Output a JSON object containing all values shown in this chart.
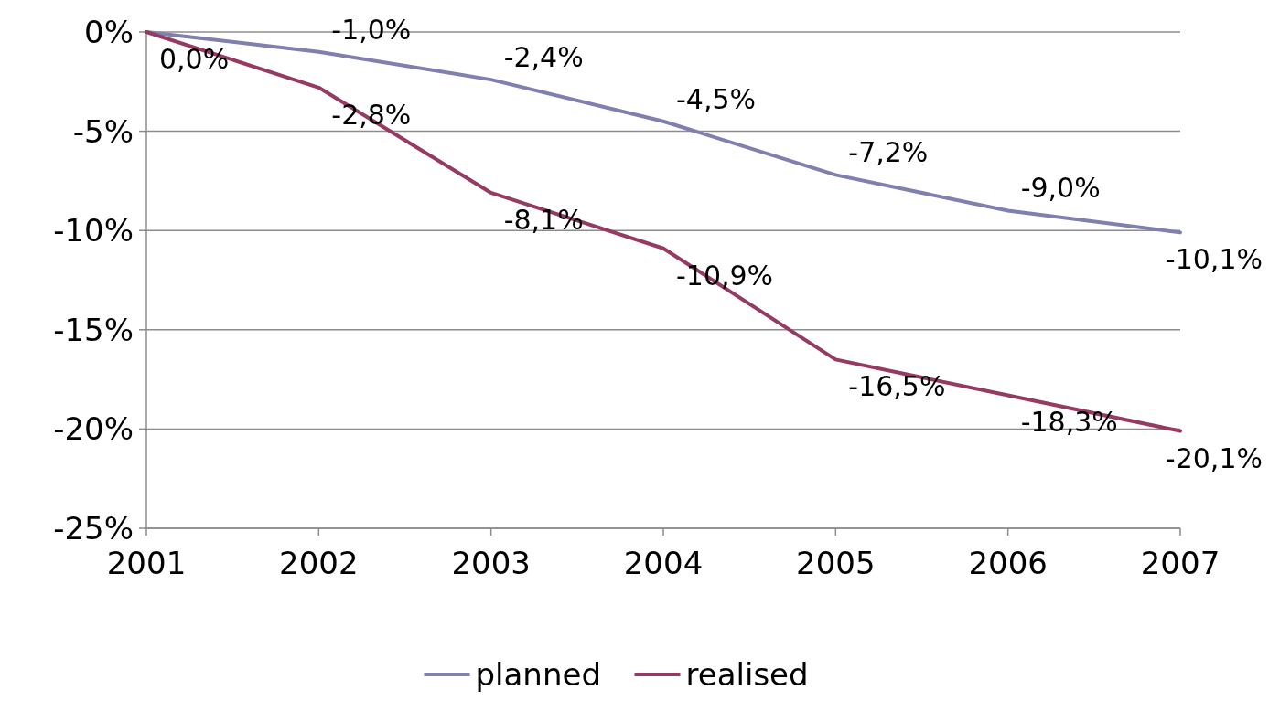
{
  "chart_data": {
    "type": "line",
    "categories": [
      "2001",
      "2002",
      "2003",
      "2004",
      "2005",
      "2006",
      "2007"
    ],
    "series": [
      {
        "name": "planned",
        "color": "#7f7fb0",
        "values": [
          0,
          -1.0,
          -2.4,
          -4.5,
          -7.2,
          -9.0,
          -10.1
        ],
        "value_labels": [
          null,
          "-1,0%",
          "-2,4%",
          "-4,5%",
          "-7,2%",
          "-9,0%",
          "-10,1%"
        ]
      },
      {
        "name": "realised",
        "color": "#953a62",
        "values": [
          0,
          -2.8,
          -8.1,
          -10.9,
          -16.5,
          -18.3,
          -20.1
        ],
        "value_labels": [
          "0,0%",
          "-2,8%",
          "-8,1%",
          "-10,9%",
          "-16,5%",
          "-18,3%",
          "-20,1%"
        ]
      }
    ],
    "ylim": [
      -25,
      0
    ],
    "yticks": [
      {
        "value": 0,
        "label": "0%"
      },
      {
        "value": -5,
        "label": "-5%"
      },
      {
        "value": -10,
        "label": "-10%"
      },
      {
        "value": -15,
        "label": "-15%"
      },
      {
        "value": -20,
        "label": "-20%"
      },
      {
        "value": -25,
        "label": "-25%"
      }
    ],
    "grid": "y",
    "legend": "bottom",
    "marker": "none",
    "line_style": "solid"
  }
}
